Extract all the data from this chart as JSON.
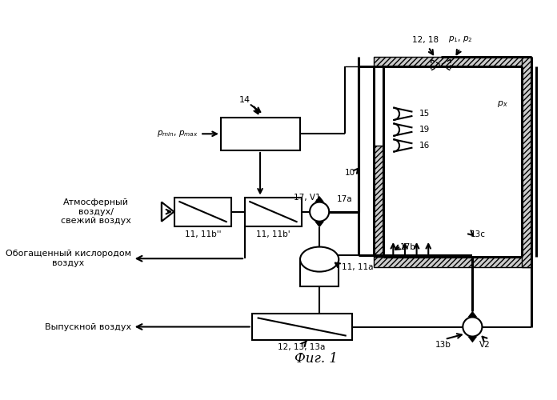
{
  "bg_color": "#ffffff",
  "fig_caption": "Фиг. 1",
  "label_atm": "Атмосферный\nвоздух/\nсвежий воздух",
  "label_oxy": "Обогащенный кислородом\nвоздух",
  "label_exhaust": "Выпускной воздух",
  "lw": 1.5,
  "lw2": 2.2
}
